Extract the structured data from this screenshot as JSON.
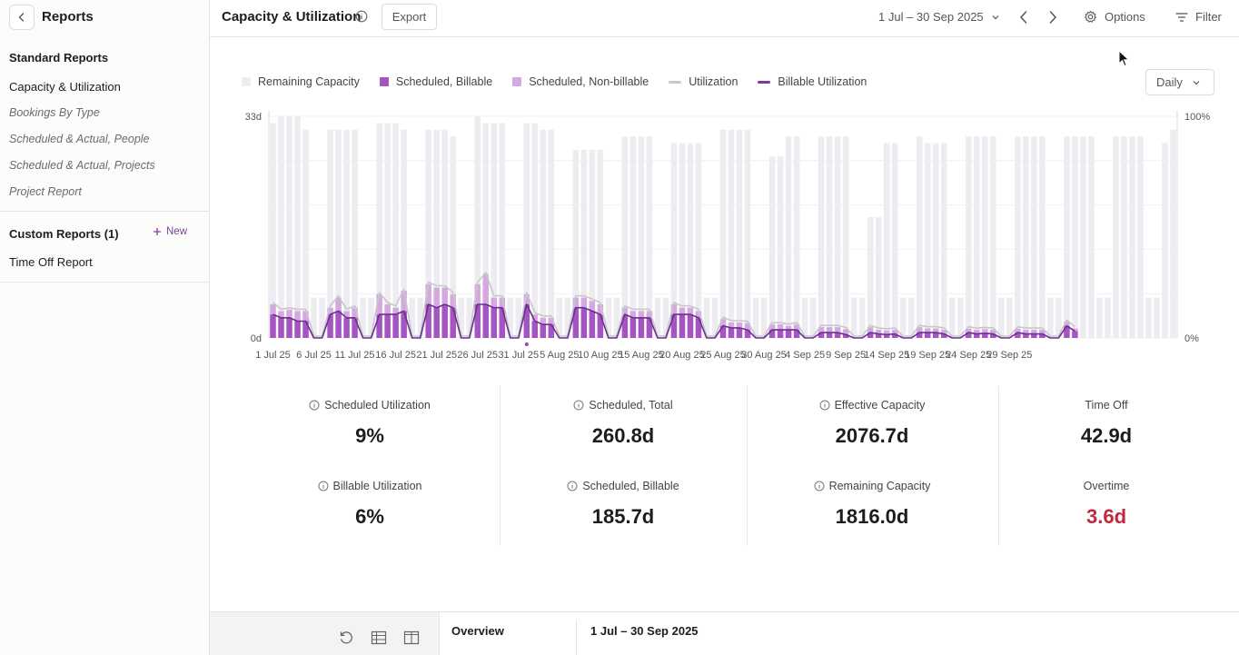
{
  "sidebar": {
    "title": "Reports",
    "standard_title": "Standard Reports",
    "standard_items": [
      {
        "label": "Capacity & Utilization",
        "active": true
      },
      {
        "label": "Bookings By Type"
      },
      {
        "label": "Scheduled & Actual, People"
      },
      {
        "label": "Scheduled & Actual, Projects"
      },
      {
        "label": "Project Report"
      }
    ],
    "custom_title": "Custom Reports (1)",
    "new_label": "New",
    "custom_items": [
      {
        "label": "Time Off Report"
      }
    ]
  },
  "header": {
    "title": "Capacity & Utilization",
    "export_label": "Export",
    "date_range": "1 Jul – 30 Sep 2025",
    "options_label": "Options",
    "filter_label": "Filter"
  },
  "legend": [
    {
      "label": "Remaining Capacity",
      "color": "#ececf2",
      "kind": "box"
    },
    {
      "label": "Scheduled, Billable",
      "color": "#a455c2",
      "kind": "box"
    },
    {
      "label": "Scheduled, Non-billable",
      "color": "#d4a9e0",
      "kind": "box"
    },
    {
      "label": "Utilization",
      "color": "#c8c8cc",
      "kind": "line"
    },
    {
      "label": "Billable Utilization",
      "color": "#7b3a9c",
      "kind": "line"
    }
  ],
  "granularity": "Daily",
  "chart_data": {
    "type": "bar",
    "y_left_labels": [
      "33d",
      "0d"
    ],
    "y_right_labels": [
      "100%",
      "0%"
    ],
    "x_tick_labels": [
      "1 Jul 25",
      "6 Jul 25",
      "11 Jul 25",
      "16 Jul 25",
      "21 Jul 25",
      "26 Jul 25",
      "31 Jul 25",
      "5 Aug 25",
      "10 Aug 25",
      "15 Aug 25",
      "20 Aug 25",
      "25 Aug 25",
      "30 Aug 25",
      "4 Sep 25",
      "9 Sep 25",
      "14 Sep 25",
      "19 Sep 25",
      "24 Sep 25",
      "29 Sep 25"
    ],
    "ylim": [
      0,
      33
    ],
    "capacity": [
      32,
      33,
      33,
      33,
      31,
      6,
      6,
      31,
      31,
      31,
      31,
      6,
      6,
      32,
      32,
      32,
      31,
      6,
      6,
      31,
      31,
      31,
      30,
      6,
      6,
      33,
      32,
      32,
      32,
      6,
      6,
      32,
      32,
      31,
      31,
      6,
      6,
      28,
      28,
      28,
      28,
      6,
      6,
      30,
      30,
      30,
      30,
      6,
      6,
      29,
      29,
      29,
      29,
      6,
      6,
      31,
      31,
      31,
      31,
      6,
      6,
      27,
      27,
      30,
      30,
      6,
      6,
      30,
      30,
      30,
      30,
      6,
      6,
      18,
      18,
      29,
      29,
      6,
      6,
      30,
      29,
      29,
      29,
      6,
      6,
      30,
      30,
      30,
      30,
      6,
      6,
      30,
      30,
      30,
      30,
      6,
      6,
      30,
      30,
      30,
      30,
      6,
      6,
      30,
      30,
      30,
      30,
      6,
      6,
      29,
      31
    ],
    "billable": [
      3.5,
      3,
      3,
      2.5,
      2.5,
      0,
      0,
      3.5,
      4,
      3,
      3,
      0,
      0,
      3.5,
      3.5,
      3.5,
      4,
      0,
      0,
      5,
      4.5,
      5,
      4.5,
      0,
      0,
      5,
      5,
      4.5,
      4.5,
      0,
      0,
      5,
      2.5,
      2,
      2,
      0,
      0,
      4.5,
      4.5,
      4,
      3.5,
      0,
      0,
      3.5,
      3,
      3,
      3,
      0,
      0,
      3.5,
      3.5,
      3.5,
      3,
      0,
      0,
      1.8,
      1.5,
      1.5,
      1.2,
      0,
      0,
      1.2,
      1.2,
      1.2,
      1.2,
      0,
      0,
      0.8,
      0.8,
      0.8,
      0.5,
      0,
      0,
      0.8,
      0.6,
      0.5,
      0.6,
      0,
      0,
      0.8,
      0.8,
      0.8,
      0.6,
      0,
      0,
      0.8,
      0.6,
      0.7,
      0.6,
      0,
      0,
      0.8,
      0.6,
      0.6,
      0.6,
      0,
      0,
      1.8,
      1
    ],
    "nonbillable": [
      1.5,
      1,
      1.2,
      1.5,
      1.5,
      0,
      0,
      1,
      2,
      1,
      1.5,
      0,
      0,
      3,
      1.5,
      1,
      3,
      0,
      0,
      3,
      3,
      2.5,
      2,
      0,
      0,
      3,
      4.5,
      1.5,
      1.5,
      0,
      0,
      1.5,
      1,
      1,
      1,
      0,
      0,
      1.5,
      1.5,
      1.5,
      1.5,
      0,
      0,
      1,
      1,
      1,
      1,
      0,
      0,
      1.5,
      1,
      1,
      1,
      0,
      0,
      1,
      0.8,
      0.8,
      1,
      0,
      0,
      0.8,
      0.8,
      0.6,
      0.8,
      0,
      0,
      0.8,
      0.8,
      0.8,
      0.8,
      0,
      0,
      0.8,
      0.6,
      0.6,
      0.6,
      0,
      0,
      0.8,
      0.6,
      0.6,
      0.6,
      0,
      0,
      0.6,
      0.6,
      0.6,
      0.6,
      0,
      0,
      0.6,
      0.6,
      0.6,
      0.6,
      0,
      0,
      0.6,
      0.4
    ]
  },
  "stats": [
    {
      "label": "Scheduled Utilization",
      "value": "9%",
      "info": true
    },
    {
      "label": "Scheduled, Total",
      "value": "260.8d",
      "info": true
    },
    {
      "label": "Effective Capacity",
      "value": "2076.7d",
      "info": true
    },
    {
      "label": "Time Off",
      "value": "42.9d",
      "info": false
    },
    {
      "label": "Billable Utilization",
      "value": "6%",
      "info": true
    },
    {
      "label": "Scheduled, Billable",
      "value": "185.7d",
      "info": true
    },
    {
      "label": "Remaining Capacity",
      "value": "1816.0d",
      "info": true
    },
    {
      "label": "Overtime",
      "value": "3.6d",
      "info": false,
      "color": "#c0283e"
    }
  ],
  "bottom": {
    "overview_label": "Overview",
    "period_label": "1 Jul – 30 Sep 2025"
  }
}
